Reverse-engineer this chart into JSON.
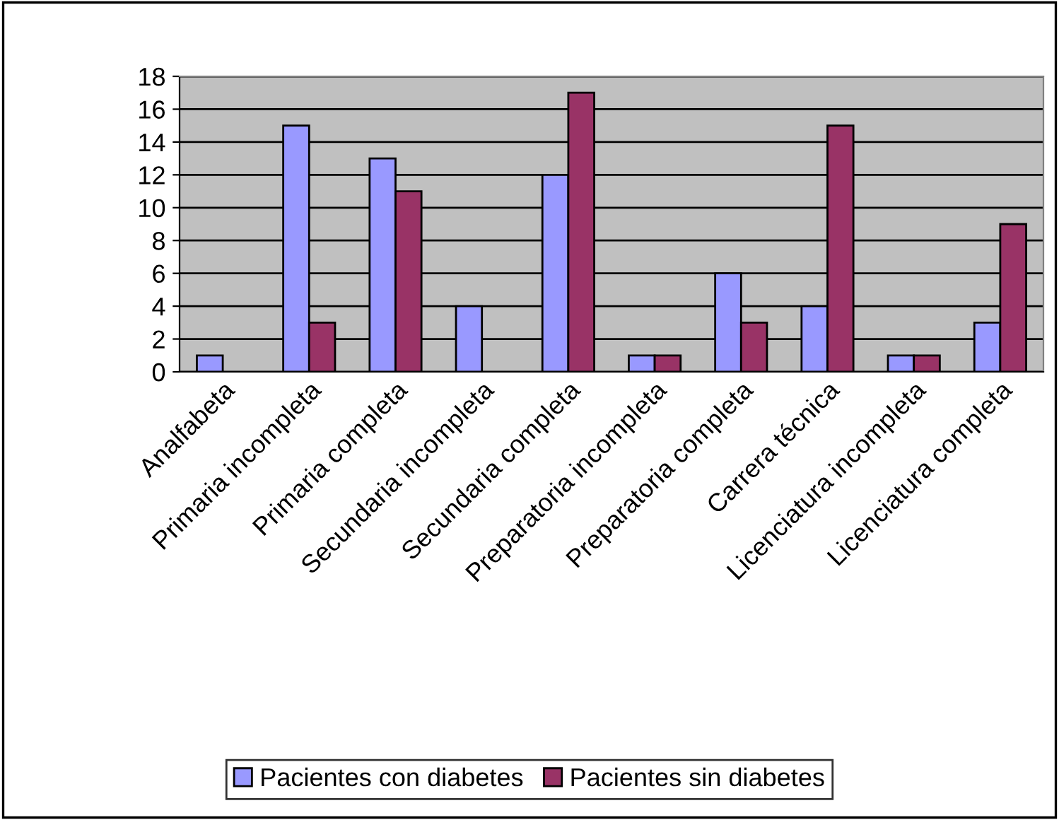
{
  "chart_data": {
    "type": "bar",
    "categories": [
      "Analfabeta",
      "Primaria incompleta",
      "Primaria completa",
      "Secundaria incompleta",
      "Secundaria completa",
      "Preparatoria incompleta",
      "Preparatoria completa",
      "Carrera técnica",
      "Licenciatura incompleta",
      "Licenciatura completa"
    ],
    "series": [
      {
        "name": "Pacientes con diabetes",
        "color": "#9999ff",
        "values": [
          1,
          15,
          13,
          4,
          12,
          1,
          6,
          4,
          1,
          3
        ]
      },
      {
        "name": "Pacientes sin diabetes",
        "color": "#993366",
        "values": [
          null,
          3,
          11,
          null,
          17,
          1,
          3,
          15,
          1,
          9
        ]
      }
    ],
    "ylim": [
      0,
      18
    ],
    "yticks": [
      0,
      2,
      4,
      6,
      8,
      10,
      12,
      14,
      16,
      18
    ],
    "grid": "y",
    "legend": "bottom"
  }
}
